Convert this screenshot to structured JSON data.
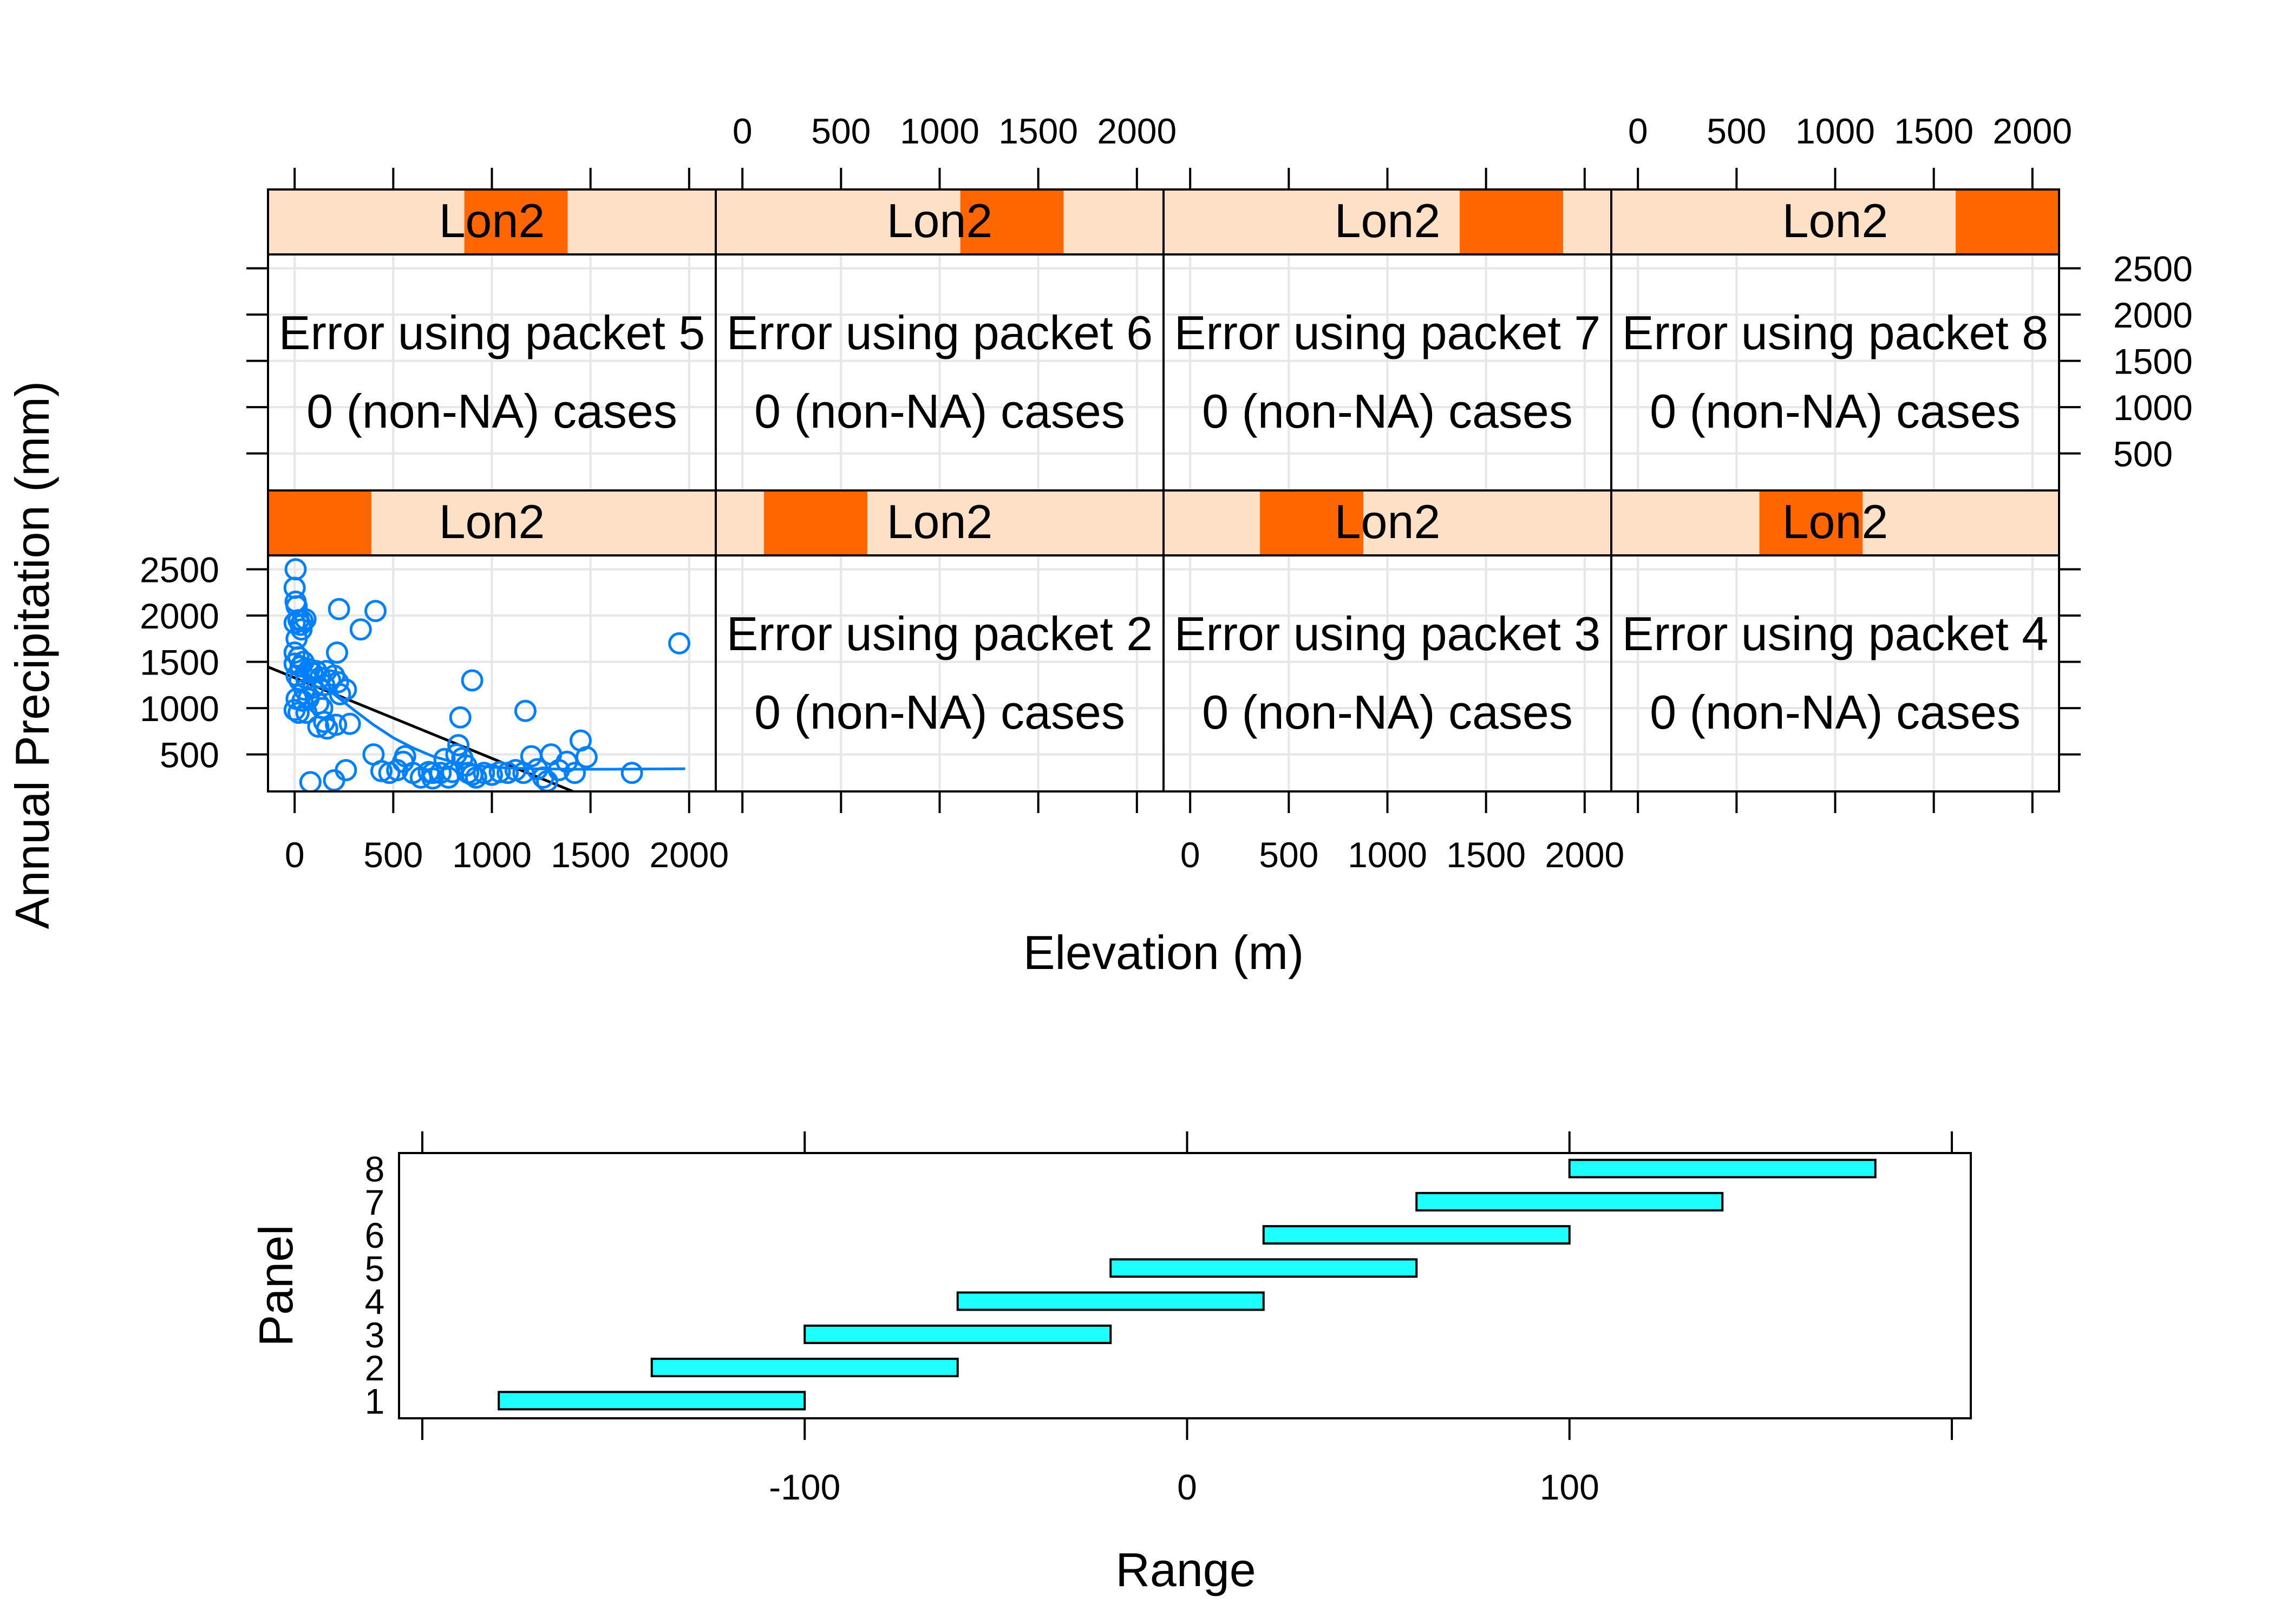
{
  "chart_data": [
    {
      "type": "scatter",
      "layout": {
        "columns": 4,
        "rows": 2
      },
      "xlabel": "Elevation (m)",
      "ylabel": "Annual Precipitation (mm)",
      "xlim": [
        -135,
        2135
      ],
      "ylim": [
        100,
        2650
      ],
      "x_ticks": [
        0,
        500,
        1000,
        1500,
        2000
      ],
      "y_ticks": [
        500,
        1000,
        1500,
        2000,
        2500
      ],
      "grid": true,
      "strip": {
        "label": "Lon2",
        "background": "#fde0c5",
        "indicator": "#ff6600"
      },
      "series_color": "#0080ff",
      "panels": [
        {
          "id": 1,
          "strip_label": "Lon2",
          "range_fraction": [
            0.0,
            0.2308
          ],
          "points": [
            [
              5,
              2500
            ],
            [
              0,
              2300
            ],
            [
              5,
              2150
            ],
            [
              10,
              2100
            ],
            [
              20,
              1950
            ],
            [
              40,
              1940
            ],
            [
              55,
              1960
            ],
            [
              30,
              1900
            ],
            [
              0,
              1920
            ],
            [
              10,
              1750
            ],
            [
              35,
              1850
            ],
            [
              0,
              1600
            ],
            [
              20,
              1550
            ],
            [
              45,
              1500
            ],
            [
              0,
              1480
            ],
            [
              30,
              1450
            ],
            [
              10,
              1350
            ],
            [
              25,
              1300
            ],
            [
              60,
              1320
            ],
            [
              75,
              1420
            ],
            [
              90,
              1380
            ],
            [
              110,
              1400
            ],
            [
              130,
              1330
            ],
            [
              160,
              1400
            ],
            [
              150,
              1250
            ],
            [
              180,
              1300
            ],
            [
              50,
              1200
            ],
            [
              95,
              1220
            ],
            [
              200,
              1350
            ],
            [
              220,
              1280
            ],
            [
              230,
              1150
            ],
            [
              260,
              1200
            ],
            [
              10,
              1100
            ],
            [
              40,
              1080
            ],
            [
              70,
              1100
            ],
            [
              120,
              1050
            ],
            [
              140,
              1000
            ],
            [
              60,
              950
            ],
            [
              20,
              950
            ],
            [
              0,
              980
            ],
            [
              150,
              850
            ],
            [
              165,
              780
            ],
            [
              210,
              820
            ],
            [
              280,
              830
            ],
            [
              120,
              800
            ],
            [
              215,
              1600
            ],
            [
              225,
              2070
            ],
            [
              335,
              1850
            ],
            [
              410,
              2050
            ],
            [
              550,
              420
            ],
            [
              900,
              1300
            ],
            [
              840,
              900
            ],
            [
              1170,
              970
            ],
            [
              1950,
              1700
            ],
            [
              80,
              200
            ],
            [
              200,
              220
            ],
            [
              260,
              330
            ],
            [
              400,
              500
            ],
            [
              440,
              320
            ],
            [
              480,
              300
            ],
            [
              560,
              480
            ],
            [
              520,
              330
            ],
            [
              600,
              300
            ],
            [
              640,
              250
            ],
            [
              680,
              310
            ],
            [
              700,
              240
            ],
            [
              740,
              300
            ],
            [
              780,
              250
            ],
            [
              800,
              310
            ],
            [
              830,
              600
            ],
            [
              850,
              460
            ],
            [
              870,
              380
            ],
            [
              880,
              300
            ],
            [
              900,
              280
            ],
            [
              920,
              250
            ],
            [
              960,
              300
            ],
            [
              1000,
              280
            ],
            [
              1040,
              310
            ],
            [
              1080,
              300
            ],
            [
              1120,
              330
            ],
            [
              1160,
              300
            ],
            [
              1200,
              480
            ],
            [
              1230,
              340
            ],
            [
              1260,
              250
            ],
            [
              1280,
              210
            ],
            [
              1300,
              500
            ],
            [
              1340,
              330
            ],
            [
              1380,
              420
            ],
            [
              1420,
              300
            ],
            [
              1450,
              650
            ],
            [
              1480,
              470
            ],
            [
              1710,
              300
            ],
            [
              700,
              300
            ],
            [
              760,
              450
            ],
            [
              820,
              500
            ]
          ],
          "regression_line": [
            [
              -135,
              1445
            ],
            [
              2135,
              -530
            ]
          ],
          "loess_curve": [
            [
              0,
              1450
            ],
            [
              100,
              1320
            ],
            [
              200,
              1150
            ],
            [
              300,
              980
            ],
            [
              400,
              820
            ],
            [
              500,
              680
            ],
            [
              600,
              570
            ],
            [
              700,
              480
            ],
            [
              800,
              420
            ],
            [
              900,
              385
            ],
            [
              1000,
              360
            ],
            [
              1200,
              345
            ],
            [
              1400,
              340
            ],
            [
              1600,
              340
            ],
            [
              1980,
              345
            ]
          ]
        },
        {
          "id": 2,
          "strip_label": "Lon2",
          "range_fraction": [
            0.1077,
            0.3385
          ],
          "error_line1": "Error using packet 2",
          "error_line2": "0 (non-NA) cases"
        },
        {
          "id": 3,
          "strip_label": "Lon2",
          "range_fraction": [
            0.2154,
            0.4462
          ],
          "error_line1": "Error using packet 3",
          "error_line2": "0 (non-NA) cases"
        },
        {
          "id": 4,
          "strip_label": "Lon2",
          "range_fraction": [
            0.3308,
            0.5615
          ],
          "error_line1": "Error using packet 4",
          "error_line2": "0 (non-NA) cases"
        },
        {
          "id": 5,
          "strip_label": "Lon2",
          "range_fraction": [
            0.4385,
            0.6692
          ],
          "error_line1": "Error using packet 5",
          "error_line2": "0 (non-NA) cases"
        },
        {
          "id": 6,
          "strip_label": "Lon2",
          "range_fraction": [
            0.5462,
            0.7769
          ],
          "error_line1": "Error using packet 6",
          "error_line2": "0 (non-NA) cases"
        },
        {
          "id": 7,
          "strip_label": "Lon2",
          "range_fraction": [
            0.6615,
            0.8923
          ],
          "error_line1": "Error using packet 7",
          "error_line2": "0 (non-NA) cases"
        },
        {
          "id": 8,
          "strip_label": "Lon2",
          "range_fraction": [
            0.7692,
            1.0
          ],
          "error_line1": "Error using packet 8",
          "error_line2": "0 (non-NA) cases"
        }
      ]
    },
    {
      "type": "bar",
      "orientation": "horizontal-range",
      "xlabel": "Range",
      "ylabel": "Panel",
      "xlim": [
        -200,
        200
      ],
      "x_ticks": [
        -100,
        0,
        100
      ],
      "x_minor_ticks": [
        -200,
        -100,
        0,
        100,
        200
      ],
      "bar_color": "#1effff",
      "categories": [
        "1",
        "2",
        "3",
        "4",
        "5",
        "6",
        "7",
        "8"
      ],
      "intervals": [
        [
          -180,
          -100
        ],
        [
          -140,
          -60
        ],
        [
          -100,
          -20
        ],
        [
          -60,
          20
        ],
        [
          -20,
          60
        ],
        [
          20,
          100
        ],
        [
          60,
          140
        ],
        [
          100,
          180
        ]
      ]
    }
  ]
}
